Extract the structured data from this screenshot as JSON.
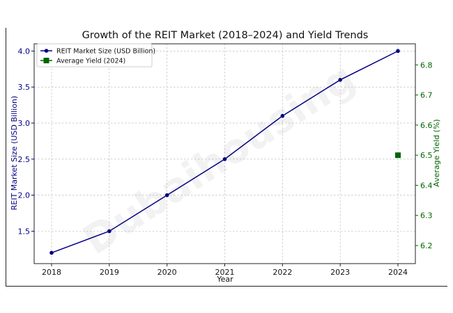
{
  "chart_data": {
    "type": "line",
    "title": "Growth of the REIT Market (2018–2024) and Yield Trends",
    "xlabel": "Year",
    "ylabel": "REIT Market Size (USD Billion)",
    "y2label": "Average Yield (%)",
    "x": [
      "2018",
      "2019",
      "2020",
      "2021",
      "2022",
      "2023",
      "2024"
    ],
    "ylim": [
      1.05,
      4.1
    ],
    "y2lim": [
      6.14,
      6.87
    ],
    "yticks": [
      "1.5",
      "2.0",
      "2.5",
      "3.0",
      "3.5",
      "4.0"
    ],
    "y2ticks": [
      "6.2",
      "6.3",
      "6.4",
      "6.5",
      "6.6",
      "6.7",
      "6.8"
    ],
    "grid": true,
    "legend_position": "top-left",
    "series": [
      {
        "name": "REIT Market Size (USD Billion)",
        "axis": "left",
        "color": "#000080",
        "marker": "circle",
        "values": [
          1.2,
          1.5,
          2.0,
          2.5,
          3.1,
          3.6,
          4.0
        ]
      },
      {
        "name": "Average Yield (2024)",
        "axis": "right",
        "color": "#006400",
        "marker": "square",
        "points": [
          {
            "x": "2024",
            "y": 6.5
          }
        ]
      }
    ],
    "watermark": "Dubaihousing"
  }
}
